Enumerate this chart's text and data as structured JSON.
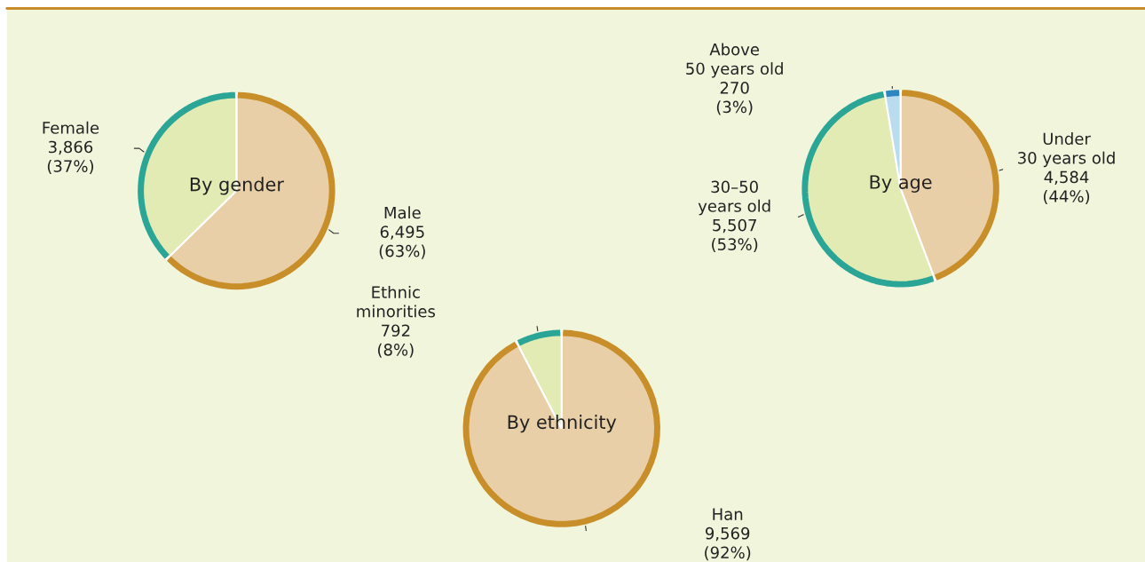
{
  "chart_data": [
    {
      "type": "pie",
      "title": "By gender",
      "categories": [
        "Male",
        "Female"
      ],
      "values": [
        6495,
        3866
      ],
      "colors": [
        "#e9cfa8",
        "#e3ebb5"
      ],
      "value_labels": [
        "6,495\n(63%)",
        "3,866\n(37%)"
      ]
    },
    {
      "type": "pie",
      "title": "By ethnicity",
      "categories": [
        "Han",
        "Ethnic\nminorities"
      ],
      "values": [
        9569,
        792
      ],
      "colors": [
        "#e9cfa8",
        "#e3ebb5"
      ],
      "value_labels": [
        "9,569\n(92%)",
        "792\n(8%)"
      ]
    },
    {
      "type": "pie",
      "title": "By age",
      "categories": [
        "Under\n30 years old",
        "30–50\nyears old",
        "Above\n50 years old"
      ],
      "values": [
        4584,
        5507,
        270
      ],
      "colors": [
        "#e9cfa8",
        "#e3ebb5",
        "#b9dcef"
      ],
      "value_labels": [
        "4,584\n(44%)",
        "5,507\n(53%)",
        "270\n(3%)"
      ]
    }
  ]
}
